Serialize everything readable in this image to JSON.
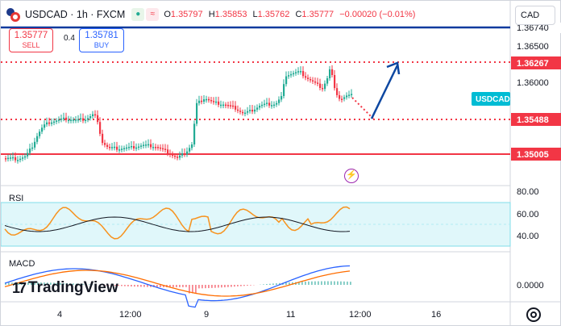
{
  "header": {
    "title": "USDCAD · 1h · FXCM",
    "status_icons": [
      "market-open-icon",
      "data-delay-icon"
    ],
    "ohlc": [
      {
        "k": "O",
        "v": "1.35797"
      },
      {
        "k": "H",
        "v": "1.35853"
      },
      {
        "k": "L",
        "v": "1.35762"
      },
      {
        "k": "C",
        "v": "1.35777"
      },
      {
        "k": "",
        "v": "−0.00020 (−0.01%)"
      }
    ]
  },
  "trade": {
    "sell_price": "1.35777",
    "sell_label": "SELL",
    "spread": "0.4",
    "buy_price": "1.35781",
    "buy_label": "BUY"
  },
  "currency": "CAD",
  "price_scale": {
    "labels": [
      "1.36500",
      "1.36000"
    ],
    "badges": [
      {
        "text": "1.36740",
        "bg": "#ffffff",
        "fg": "#131722"
      },
      {
        "text": "1.36267",
        "bg": "#f23645",
        "fg": "#ffffff"
      },
      {
        "text": "USDCAD",
        "bg": "#00bcd4",
        "fg": "#ffffff"
      },
      {
        "text": "1.35488",
        "bg": "#f23645",
        "fg": "#ffffff"
      },
      {
        "text": "1.35005",
        "bg": "#f23645",
        "fg": "#ffffff"
      }
    ]
  },
  "rsi": {
    "label": "RSI",
    "scale": [
      "80.00",
      "60.00",
      "40.00"
    ]
  },
  "macd": {
    "label": "MACD",
    "scale": [
      "0.0000"
    ]
  },
  "time_axis": [
    "4",
    "12:00",
    "9",
    "11",
    "12:00",
    "16"
  ],
  "brand": "TradingView",
  "colors": {
    "up": "#22ab94",
    "down": "#f23645",
    "level": "#f23645",
    "arrow": "#0d47a1",
    "rsi_line": "#f7931e",
    "rsi_ma": "#131722",
    "macd_line": "#2962ff",
    "signal_line": "#ff6d00"
  }
}
